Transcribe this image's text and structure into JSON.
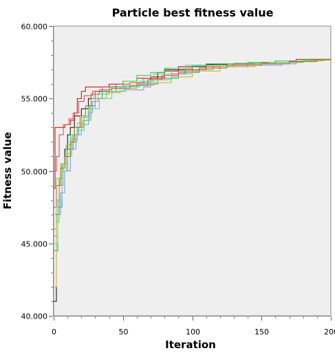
{
  "chart_data": {
    "type": "line",
    "title": "Particle best fitness value",
    "xlabel": "Iteration",
    "ylabel": "Fitness value",
    "xlim": [
      0,
      200
    ],
    "ylim": [
      40000,
      60000
    ],
    "x_ticks": [
      {
        "value": 0,
        "label": "0"
      },
      {
        "value": 50,
        "label": "50"
      },
      {
        "value": 100,
        "label": "100"
      },
      {
        "value": 150,
        "label": "150"
      },
      {
        "value": 200,
        "label": "200"
      }
    ],
    "y_ticks": [
      {
        "value": 40000,
        "label": "40.000"
      },
      {
        "value": 45000,
        "label": "45.000"
      },
      {
        "value": 50000,
        "label": "50.000"
      },
      {
        "value": 55000,
        "label": "55.000"
      },
      {
        "value": 60000,
        "label": "60.000"
      }
    ],
    "grid": false,
    "legend": "none",
    "plot_background": "#efefef",
    "series": [
      {
        "color": "#000000",
        "points": [
          [
            0,
            41000
          ],
          [
            2,
            47000
          ],
          [
            4,
            49500
          ],
          [
            6,
            50500
          ],
          [
            8,
            51500
          ],
          [
            10,
            52500
          ],
          [
            12,
            53000
          ],
          [
            15,
            53800
          ],
          [
            20,
            54300
          ],
          [
            25,
            55000
          ],
          [
            30,
            55500
          ],
          [
            40,
            55800
          ],
          [
            55,
            55800
          ],
          [
            60,
            56100
          ],
          [
            70,
            56400
          ],
          [
            75,
            56800
          ],
          [
            80,
            57000
          ],
          [
            90,
            57000
          ],
          [
            100,
            57200
          ],
          [
            110,
            57350
          ],
          [
            125,
            57400
          ],
          [
            150,
            57500
          ],
          [
            160,
            57600
          ],
          [
            180,
            57700
          ],
          [
            200,
            57750
          ]
        ]
      },
      {
        "color": "#cc0000",
        "points": [
          [
            0,
            48800
          ],
          [
            1,
            53000
          ],
          [
            5,
            53000
          ],
          [
            8,
            53200
          ],
          [
            12,
            53500
          ],
          [
            15,
            54000
          ],
          [
            17,
            55000
          ],
          [
            20,
            55500
          ],
          [
            23,
            55800
          ],
          [
            30,
            55800
          ],
          [
            40,
            56000
          ],
          [
            50,
            56200
          ],
          [
            60,
            56400
          ],
          [
            70,
            56500
          ],
          [
            80,
            56900
          ],
          [
            90,
            57200
          ],
          [
            100,
            57300
          ],
          [
            110,
            57400
          ],
          [
            120,
            57400
          ],
          [
            140,
            57400
          ],
          [
            150,
            57500
          ],
          [
            160,
            57600
          ],
          [
            175,
            57700
          ],
          [
            200,
            57750
          ]
        ]
      },
      {
        "color": "#33cc33",
        "points": [
          [
            0,
            46000
          ],
          [
            2,
            48000
          ],
          [
            4,
            49500
          ],
          [
            6,
            50500
          ],
          [
            9,
            51500
          ],
          [
            12,
            52500
          ],
          [
            15,
            53000
          ],
          [
            20,
            53700
          ],
          [
            25,
            54500
          ],
          [
            30,
            55500
          ],
          [
            40,
            55800
          ],
          [
            50,
            56200
          ],
          [
            60,
            56600
          ],
          [
            70,
            56800
          ],
          [
            80,
            57100
          ],
          [
            100,
            57300
          ],
          [
            120,
            57400
          ],
          [
            140,
            57500
          ],
          [
            160,
            57600
          ],
          [
            180,
            57700
          ],
          [
            200,
            57750
          ]
        ]
      },
      {
        "color": "#00aaaa",
        "points": [
          [
            0,
            44500
          ],
          [
            3,
            47500
          ],
          [
            6,
            50000
          ],
          [
            10,
            51500
          ],
          [
            14,
            52500
          ],
          [
            18,
            53000
          ],
          [
            22,
            53500
          ],
          [
            26,
            54500
          ],
          [
            30,
            55000
          ],
          [
            35,
            55500
          ],
          [
            45,
            55800
          ],
          [
            60,
            56000
          ],
          [
            75,
            56400
          ],
          [
            90,
            56800
          ],
          [
            105,
            57100
          ],
          [
            120,
            57300
          ],
          [
            140,
            57400
          ],
          [
            160,
            57500
          ],
          [
            180,
            57650
          ],
          [
            200,
            57750
          ]
        ]
      },
      {
        "color": "#8888ee",
        "points": [
          [
            0,
            45500
          ],
          [
            3,
            47000
          ],
          [
            5,
            48500
          ],
          [
            8,
            50000
          ],
          [
            12,
            51500
          ],
          [
            16,
            52500
          ],
          [
            20,
            53200
          ],
          [
            25,
            54000
          ],
          [
            28,
            54800
          ],
          [
            32,
            55300
          ],
          [
            40,
            55500
          ],
          [
            50,
            55600
          ],
          [
            65,
            55800
          ],
          [
            70,
            56300
          ],
          [
            80,
            56700
          ],
          [
            100,
            57000
          ],
          [
            115,
            57200
          ],
          [
            140,
            57300
          ],
          [
            165,
            57400
          ],
          [
            175,
            57600
          ],
          [
            185,
            57700
          ],
          [
            200,
            57750
          ]
        ]
      },
      {
        "color": "#88cc44",
        "points": [
          [
            0,
            47000
          ],
          [
            2,
            49500
          ],
          [
            5,
            50500
          ],
          [
            9,
            51800
          ],
          [
            13,
            52500
          ],
          [
            17,
            53300
          ],
          [
            22,
            53800
          ],
          [
            27,
            55000
          ],
          [
            32,
            55300
          ],
          [
            40,
            55700
          ],
          [
            50,
            55900
          ],
          [
            60,
            56100
          ],
          [
            75,
            56300
          ],
          [
            85,
            56700
          ],
          [
            100,
            57000
          ],
          [
            115,
            57300
          ],
          [
            130,
            57400
          ],
          [
            150,
            57500
          ],
          [
            170,
            57600
          ],
          [
            190,
            57700
          ],
          [
            200,
            57750
          ]
        ]
      },
      {
        "color": "#dd4444",
        "points": [
          [
            0,
            50000
          ],
          [
            2,
            51000
          ],
          [
            4,
            52500
          ],
          [
            7,
            53200
          ],
          [
            11,
            53600
          ],
          [
            14,
            54000
          ],
          [
            18,
            54800
          ],
          [
            22,
            55200
          ],
          [
            28,
            55500
          ],
          [
            35,
            55800
          ],
          [
            45,
            56000
          ],
          [
            55,
            56100
          ],
          [
            65,
            56400
          ],
          [
            80,
            56700
          ],
          [
            95,
            57000
          ],
          [
            110,
            57200
          ],
          [
            130,
            57400
          ],
          [
            150,
            57500
          ],
          [
            170,
            57600
          ],
          [
            185,
            57700
          ],
          [
            200,
            57750
          ]
        ]
      },
      {
        "color": "#ccaa22",
        "points": [
          [
            0,
            42000
          ],
          [
            2,
            46500
          ],
          [
            4,
            49000
          ],
          [
            7,
            50500
          ],
          [
            10,
            51200
          ],
          [
            13,
            52200
          ],
          [
            17,
            53000
          ],
          [
            21,
            53500
          ],
          [
            26,
            54300
          ],
          [
            30,
            55000
          ],
          [
            38,
            55400
          ],
          [
            48,
            55700
          ],
          [
            60,
            55900
          ],
          [
            72,
            56100
          ],
          [
            85,
            56500
          ],
          [
            100,
            56900
          ],
          [
            120,
            57200
          ],
          [
            145,
            57400
          ],
          [
            165,
            57500
          ],
          [
            180,
            57650
          ],
          [
            200,
            57750
          ]
        ]
      },
      {
        "color": "#44dd88",
        "points": [
          [
            0,
            45000
          ],
          [
            3,
            48000
          ],
          [
            6,
            50000
          ],
          [
            9,
            51000
          ],
          [
            13,
            52000
          ],
          [
            17,
            52800
          ],
          [
            22,
            53500
          ],
          [
            27,
            54300
          ],
          [
            33,
            55000
          ],
          [
            42,
            55500
          ],
          [
            52,
            55800
          ],
          [
            62,
            56200
          ],
          [
            72,
            56700
          ],
          [
            85,
            57100
          ],
          [
            95,
            57300
          ],
          [
            110,
            57400
          ],
          [
            130,
            57450
          ],
          [
            155,
            57500
          ],
          [
            175,
            57600
          ],
          [
            195,
            57700
          ],
          [
            200,
            57750
          ]
        ]
      },
      {
        "color": "#aa6633",
        "points": [
          [
            0,
            47500
          ],
          [
            2,
            49000
          ],
          [
            5,
            50200
          ],
          [
            8,
            51000
          ],
          [
            12,
            52000
          ],
          [
            15,
            53000
          ],
          [
            19,
            53800
          ],
          [
            23,
            54500
          ],
          [
            27,
            55300
          ],
          [
            33,
            55600
          ],
          [
            42,
            55700
          ],
          [
            55,
            55900
          ],
          [
            68,
            56300
          ],
          [
            78,
            56600
          ],
          [
            90,
            56900
          ],
          [
            105,
            57100
          ],
          [
            125,
            57300
          ],
          [
            150,
            57400
          ],
          [
            170,
            57550
          ],
          [
            190,
            57700
          ],
          [
            200,
            57750
          ]
        ]
      }
    ]
  }
}
